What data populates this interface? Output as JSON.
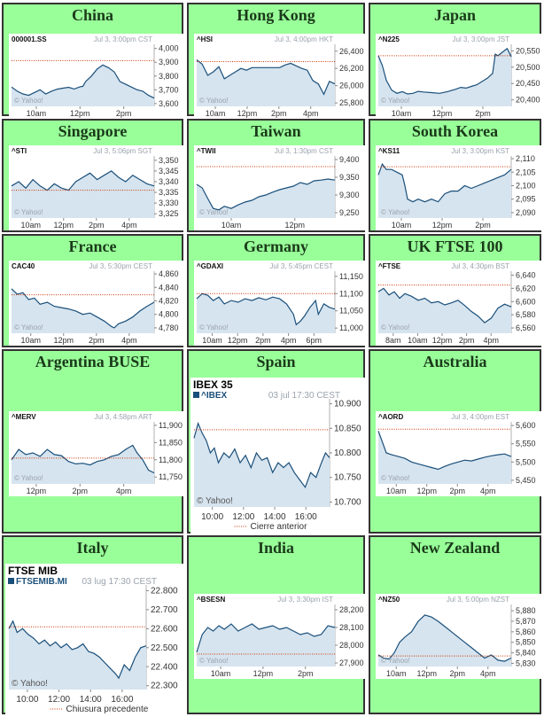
{
  "colors": {
    "cell_bg": "#99ff99",
    "line": "#1a4f7a",
    "fill": "#d6e4ef",
    "prev_close": "#cc3300",
    "yahoo": "#9aa3ad"
  },
  "chart_data": [
    {
      "type": "area",
      "region": "China",
      "symbol": "000001.SS",
      "timestamp": "Jul 3, 3:00pm CST",
      "watermark": "© Yahoo!",
      "x_ticks": [
        "10am",
        "12pm",
        "2pm"
      ],
      "y_ticks": [
        "3,600",
        "3,700",
        "3,800",
        "3,900",
        "4,000"
      ],
      "ylim": [
        3580,
        4030
      ],
      "prev_close": 3912,
      "x": [
        0,
        0.04,
        0.08,
        0.12,
        0.16,
        0.2,
        0.24,
        0.28,
        0.32,
        0.36,
        0.4,
        0.44,
        0.48,
        0.5,
        0.52,
        0.56,
        0.6,
        0.64,
        0.68,
        0.72,
        0.76,
        0.8,
        0.84,
        0.88,
        0.92,
        0.96,
        1
      ],
      "values": [
        3720,
        3690,
        3670,
        3660,
        3680,
        3700,
        3670,
        3690,
        3705,
        3712,
        3718,
        3706,
        3722,
        3725,
        3760,
        3800,
        3850,
        3880,
        3860,
        3830,
        3760,
        3740,
        3720,
        3700,
        3690,
        3660,
        3640
      ]
    },
    {
      "type": "area",
      "region": "Hong Kong",
      "symbol": "^HSI",
      "timestamp": "Jul 3, 4:00pm HKT",
      "watermark": "© Yahoo!",
      "x_ticks": [
        "10am",
        "12pm",
        "2pm",
        "4pm"
      ],
      "y_ticks": [
        "25,800",
        "26,000",
        "26,200",
        "26,400"
      ],
      "ylim": [
        25760,
        26480
      ],
      "prev_close": 26280,
      "x": [
        0,
        0.04,
        0.08,
        0.12,
        0.16,
        0.2,
        0.24,
        0.28,
        0.32,
        0.36,
        0.4,
        0.5,
        0.6,
        0.64,
        0.68,
        0.72,
        0.76,
        0.8,
        0.84,
        0.88,
        0.92,
        0.96,
        1
      ],
      "values": [
        26300,
        26250,
        26120,
        26160,
        26220,
        26080,
        26120,
        26160,
        26200,
        26180,
        26210,
        26210,
        26210,
        26240,
        26260,
        26230,
        26200,
        26180,
        26060,
        26020,
        25900,
        26050,
        26020
      ]
    },
    {
      "type": "area",
      "region": "Japan",
      "symbol": "^N225",
      "timestamp": "Jul 3, 3:00pm JST",
      "watermark": "© Yahoo!",
      "x_ticks": [
        "10am",
        "12pm",
        "2pm"
      ],
      "y_ticks": [
        "20,400",
        "20,450",
        "20,500",
        "20,550"
      ],
      "ylim": [
        20380,
        20570
      ],
      "prev_close": 20535,
      "x": [
        0,
        0.03,
        0.06,
        0.1,
        0.14,
        0.18,
        0.22,
        0.26,
        0.3,
        0.34,
        0.4,
        0.46,
        0.52,
        0.58,
        0.62,
        0.66,
        0.7,
        0.74,
        0.78,
        0.82,
        0.86,
        0.88,
        0.9,
        0.94,
        0.97,
        1
      ],
      "values": [
        20535,
        20505,
        20460,
        20430,
        20420,
        20425,
        20418,
        20420,
        20426,
        20424,
        20422,
        20420,
        20425,
        20432,
        20438,
        20436,
        20441,
        20446,
        20456,
        20466,
        20481,
        20540,
        20535,
        20548,
        20557,
        20532
      ]
    },
    {
      "type": "area",
      "region": "Singapore",
      "symbol": "^STI",
      "timestamp": "Jul 3, 5:06pm SGT",
      "watermark": "© Yahoo!",
      "x_ticks": [
        "10am",
        "12pm",
        "2pm",
        "4pm"
      ],
      "y_ticks": [
        "3,325",
        "3,330",
        "3,335",
        "3,340",
        "3,345",
        "3,350"
      ],
      "ylim": [
        3323,
        3352
      ],
      "prev_close": 3336,
      "x": [
        0,
        0.05,
        0.1,
        0.15,
        0.2,
        0.25,
        0.3,
        0.35,
        0.4,
        0.45,
        0.5,
        0.55,
        0.6,
        0.65,
        0.7,
        0.75,
        0.8,
        0.85,
        0.9,
        0.95,
        1
      ],
      "values": [
        3338,
        3340,
        3337,
        3341,
        3338,
        3336,
        3339,
        3337,
        3336,
        3340,
        3342,
        3344,
        3341,
        3343,
        3345,
        3342,
        3340,
        3343,
        3341,
        3339,
        3338
      ]
    },
    {
      "type": "area",
      "region": "Taiwan",
      "symbol": "^TWII",
      "timestamp": "Jul 3, 1:30pm CST",
      "watermark": "© Yahoo!",
      "x_ticks": [
        "10am",
        "12pm"
      ],
      "y_ticks": [
        "9,250",
        "9,300",
        "9,350",
        "9,400"
      ],
      "ylim": [
        9235,
        9410
      ],
      "prev_close": 9380,
      "x": [
        0,
        0.04,
        0.08,
        0.12,
        0.16,
        0.2,
        0.25,
        0.3,
        0.35,
        0.4,
        0.45,
        0.5,
        0.55,
        0.6,
        0.65,
        0.7,
        0.75,
        0.8,
        0.85,
        0.9,
        0.95,
        1
      ],
      "values": [
        9330,
        9320,
        9290,
        9262,
        9258,
        9268,
        9262,
        9272,
        9280,
        9285,
        9295,
        9300,
        9308,
        9315,
        9320,
        9325,
        9335,
        9330,
        9340,
        9342,
        9345,
        9342
      ]
    },
    {
      "type": "area",
      "region": "South Korea",
      "symbol": "^KS11",
      "timestamp": "Jul 3, 3:00pm KST",
      "watermark": "© Yahoo!",
      "x_ticks": [
        "10am",
        "12pm",
        "2pm"
      ],
      "y_ticks": [
        "2,090",
        "2,095",
        "2,100",
        "2,105",
        "2,110"
      ],
      "ylim": [
        2088,
        2111
      ],
      "prev_close": 2107,
      "x": [
        0,
        0.03,
        0.06,
        0.1,
        0.14,
        0.18,
        0.2,
        0.22,
        0.26,
        0.3,
        0.35,
        0.4,
        0.45,
        0.5,
        0.55,
        0.6,
        0.65,
        0.7,
        0.75,
        0.8,
        0.85,
        0.9,
        0.95,
        1
      ],
      "values": [
        2104,
        2108,
        2106,
        2106,
        2105,
        2104,
        2100,
        2095,
        2094,
        2095,
        2094,
        2095,
        2094,
        2097,
        2098,
        2098,
        2100,
        2099,
        2100,
        2101,
        2102,
        2103,
        2104,
        2106
      ]
    },
    {
      "type": "area",
      "region": "France",
      "symbol": "CAC40",
      "timestamp": "Jul 3, 5:30pm CEST",
      "watermark": "© Yahoo!",
      "x_ticks": [
        "10am",
        "12pm",
        "2pm",
        "4pm"
      ],
      "y_ticks": [
        "4,780",
        "4,800",
        "4,820",
        "4,840",
        "4,860"
      ],
      "ylim": [
        4772,
        4864
      ],
      "prev_close": 4829,
      "x": [
        0,
        0.04,
        0.08,
        0.12,
        0.16,
        0.2,
        0.25,
        0.3,
        0.35,
        0.4,
        0.45,
        0.5,
        0.55,
        0.6,
        0.65,
        0.7,
        0.72,
        0.75,
        0.8,
        0.85,
        0.9,
        0.95,
        1
      ],
      "values": [
        4838,
        4830,
        4832,
        4822,
        4824,
        4815,
        4818,
        4812,
        4810,
        4808,
        4805,
        4800,
        4802,
        4796,
        4790,
        4782,
        4780,
        4786,
        4790,
        4796,
        4805,
        4812,
        4818
      ]
    },
    {
      "type": "area",
      "region": "Germany",
      "symbol": "^GDAXI",
      "timestamp": "Jul 3, 5:45pm CEST",
      "watermark": "© Yahoo!",
      "x_ticks": [
        "10am",
        "12pm",
        "2pm",
        "4pm",
        "6pm"
      ],
      "y_ticks": [
        "11,000",
        "11,050",
        "11,100",
        "11,150"
      ],
      "ylim": [
        10985,
        11165
      ],
      "prev_close": 11100,
      "x": [
        0,
        0.04,
        0.08,
        0.12,
        0.16,
        0.2,
        0.25,
        0.3,
        0.35,
        0.4,
        0.45,
        0.5,
        0.55,
        0.6,
        0.65,
        0.7,
        0.72,
        0.75,
        0.78,
        0.82,
        0.86,
        0.88,
        0.92,
        0.96,
        1
      ],
      "values": [
        11085,
        11100,
        11095,
        11080,
        11090,
        11070,
        11080,
        11075,
        11085,
        11080,
        11088,
        11082,
        11090,
        11085,
        11070,
        11040,
        11010,
        11020,
        11035,
        11060,
        11080,
        11040,
        11070,
        11060,
        11055
      ]
    },
    {
      "type": "area",
      "region": "UK FTSE 100",
      "symbol": "^FTSE",
      "timestamp": "Jul 3, 4:30pm BST",
      "watermark": "© Yahoo!",
      "x_ticks": [
        "8am",
        "10am",
        "12pm",
        "2pm",
        "4pm"
      ],
      "y_ticks": [
        "6,560",
        "6,580",
        "6,600",
        "6,620",
        "6,640"
      ],
      "ylim": [
        6552,
        6646
      ],
      "prev_close": 6625,
      "x": [
        0,
        0.04,
        0.08,
        0.12,
        0.16,
        0.2,
        0.25,
        0.3,
        0.35,
        0.4,
        0.45,
        0.5,
        0.55,
        0.6,
        0.65,
        0.7,
        0.75,
        0.8,
        0.85,
        0.9,
        0.95,
        1
      ],
      "values": [
        6615,
        6620,
        6610,
        6615,
        6605,
        6612,
        6608,
        6602,
        6605,
        6598,
        6600,
        6595,
        6598,
        6602,
        6594,
        6585,
        6578,
        6568,
        6575,
        6590,
        6596,
        6592
      ]
    },
    {
      "type": "area",
      "region": "Argentina BUSE",
      "symbol": "^MERV",
      "timestamp": "Jul 3, 4:58pm ART",
      "watermark": "© Yahoo!",
      "x_ticks": [
        "12pm",
        "2pm",
        "4pm"
      ],
      "y_ticks": [
        "11,750",
        "11,800",
        "11,850",
        "11,900"
      ],
      "ylim": [
        11730,
        11910
      ],
      "prev_close": 11805,
      "x": [
        0,
        0.05,
        0.1,
        0.15,
        0.2,
        0.25,
        0.3,
        0.35,
        0.4,
        0.45,
        0.5,
        0.55,
        0.6,
        0.65,
        0.7,
        0.75,
        0.8,
        0.85,
        0.88,
        0.92,
        0.96,
        1
      ],
      "values": [
        11800,
        11830,
        11815,
        11820,
        11810,
        11830,
        11815,
        11812,
        11795,
        11788,
        11790,
        11785,
        11795,
        11800,
        11810,
        11815,
        11830,
        11842,
        11820,
        11800,
        11770,
        11762
      ]
    },
    {
      "type": "area",
      "region": "Spain",
      "symbol": "^IBEX",
      "heading": "IBEX 35",
      "timestamp": "03 jul 17:30 CEST",
      "watermark": "© Yahoo!",
      "legend": "Cierre anterior",
      "x_ticks": [
        "10:00",
        "12:00",
        "14:00",
        "16:00"
      ],
      "y_ticks": [
        "10.700",
        "10.750",
        "10.800",
        "10.850",
        "10.900"
      ],
      "ylim": [
        10690,
        10910
      ],
      "prev_close": 10847,
      "x": [
        0,
        0.03,
        0.06,
        0.09,
        0.12,
        0.15,
        0.18,
        0.22,
        0.26,
        0.3,
        0.34,
        0.38,
        0.42,
        0.46,
        0.5,
        0.54,
        0.58,
        0.62,
        0.66,
        0.7,
        0.74,
        0.78,
        0.82,
        0.86,
        0.9,
        0.94,
        0.97,
        1
      ],
      "values": [
        10830,
        10860,
        10840,
        10825,
        10800,
        10810,
        10780,
        10800,
        10790,
        10808,
        10780,
        10795,
        10770,
        10800,
        10785,
        10790,
        10760,
        10780,
        10770,
        10780,
        10760,
        10745,
        10730,
        10760,
        10750,
        10780,
        10800,
        10790
      ]
    },
    {
      "type": "area",
      "region": "Australia",
      "symbol": "^AORD",
      "timestamp": "Jul 3, 4:00pm EST",
      "watermark": "© Yahoo!",
      "x_ticks": [
        "10am",
        "12pm",
        "2pm",
        "4pm"
      ],
      "y_ticks": [
        "5,450",
        "5,500",
        "5,550",
        "5,600"
      ],
      "ylim": [
        5440,
        5610
      ],
      "prev_close": 5590,
      "x": [
        0,
        0.03,
        0.06,
        0.1,
        0.15,
        0.2,
        0.25,
        0.3,
        0.35,
        0.4,
        0.45,
        0.5,
        0.55,
        0.6,
        0.65,
        0.7,
        0.75,
        0.8,
        0.85,
        0.9,
        0.95,
        1
      ],
      "values": [
        5585,
        5555,
        5525,
        5520,
        5515,
        5510,
        5500,
        5495,
        5490,
        5485,
        5480,
        5488,
        5495,
        5500,
        5505,
        5503,
        5508,
        5513,
        5517,
        5520,
        5522,
        5515
      ]
    },
    {
      "type": "area",
      "region": "Italy",
      "symbol": "FTSEMIB.MI",
      "heading": "FTSE MIB",
      "timestamp": "03 lug 17:30 CEST",
      "watermark": "© Yahoo!",
      "legend": "Chiusura precedente",
      "x_ticks": [
        "10:00",
        "12:00",
        "14:00",
        "16:00"
      ],
      "y_ticks": [
        "22.300",
        "22.400",
        "22.500",
        "22.600",
        "22.700",
        "22.800"
      ],
      "ylim": [
        22280,
        22830
      ],
      "prev_close": 22610,
      "x": [
        0,
        0.03,
        0.06,
        0.1,
        0.14,
        0.18,
        0.22,
        0.26,
        0.3,
        0.34,
        0.38,
        0.42,
        0.46,
        0.5,
        0.54,
        0.58,
        0.62,
        0.66,
        0.7,
        0.74,
        0.78,
        0.8,
        0.84,
        0.88,
        0.92,
        0.96,
        1
      ],
      "values": [
        22600,
        22640,
        22580,
        22600,
        22570,
        22550,
        22520,
        22540,
        22510,
        22530,
        22500,
        22520,
        22490,
        22500,
        22520,
        22480,
        22470,
        22450,
        22420,
        22390,
        22360,
        22340,
        22410,
        22380,
        22450,
        22500,
        22510
      ]
    },
    {
      "type": "area",
      "region": "India",
      "symbol": "^BSESN",
      "timestamp": "Jul 3, 3:30pm IST",
      "watermark": "© Yahoo!",
      "x_ticks": [
        "10am",
        "12pm",
        "2pm"
      ],
      "y_ticks": [
        "27,900",
        "28,000",
        "28,100",
        "28,200"
      ],
      "ylim": [
        27880,
        28230
      ],
      "prev_close": 27950,
      "x": [
        0,
        0.04,
        0.08,
        0.12,
        0.16,
        0.2,
        0.25,
        0.3,
        0.35,
        0.4,
        0.45,
        0.5,
        0.55,
        0.6,
        0.65,
        0.7,
        0.75,
        0.8,
        0.85,
        0.9,
        0.95,
        1
      ],
      "values": [
        27960,
        28060,
        28100,
        28080,
        28110,
        28090,
        28120,
        28080,
        28100,
        28120,
        28090,
        28100,
        28110,
        28090,
        28100,
        28080,
        28060,
        28070,
        28050,
        28060,
        28110,
        28100
      ]
    },
    {
      "type": "area",
      "region": "New Zealand",
      "symbol": "^NZ50",
      "timestamp": "Jul 3, 5:00pm NZST",
      "watermark": "© Yahoo!",
      "x_ticks": [
        "10am",
        "12pm",
        "2pm",
        "4pm"
      ],
      "y_ticks": [
        "5,830",
        "5,840",
        "5,850",
        "5,860",
        "5,870",
        "5,880"
      ],
      "ylim": [
        5827,
        5886
      ],
      "prev_close": 5837,
      "x": [
        0,
        0.04,
        0.08,
        0.12,
        0.16,
        0.2,
        0.25,
        0.3,
        0.35,
        0.4,
        0.45,
        0.5,
        0.55,
        0.6,
        0.65,
        0.7,
        0.75,
        0.8,
        0.85,
        0.9,
        0.95,
        1
      ],
      "values": [
        5838,
        5835,
        5834,
        5840,
        5850,
        5855,
        5860,
        5870,
        5876,
        5874,
        5870,
        5865,
        5860,
        5855,
        5850,
        5845,
        5840,
        5835,
        5838,
        5833,
        5832,
        5835
      ]
    }
  ]
}
